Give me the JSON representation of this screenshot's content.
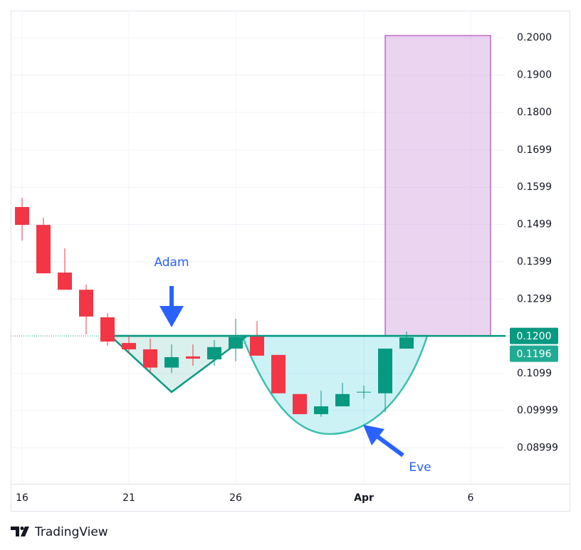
{
  "chart_data": {
    "type": "candlestick",
    "categories": [
      "16",
      null,
      null,
      null,
      null,
      "21",
      null,
      null,
      null,
      null,
      "26",
      null,
      null,
      null,
      null,
      null,
      "Apr",
      null,
      null,
      null,
      null,
      "6"
    ],
    "open": [
      0.1546,
      0.1498,
      0.137,
      0.1324,
      0.125,
      0.1181,
      0.1164,
      0.1115,
      0.1145,
      0.1137,
      0.1166,
      0.1198,
      0.1149,
      0.1044,
      0.099,
      0.1011,
      0.105,
      0.1046,
      0.1166,
      null,
      null,
      null
    ],
    "high": [
      0.1571,
      0.1517,
      0.1435,
      0.1338,
      0.1261,
      0.12,
      0.1193,
      0.1177,
      0.1177,
      0.1189,
      0.1246,
      0.124,
      0.1149,
      0.1044,
      0.1053,
      0.1074,
      0.1067,
      0.1166,
      0.1212,
      null,
      null,
      null
    ],
    "low": [
      0.1456,
      0.1368,
      0.1324,
      0.1204,
      0.1174,
      0.1153,
      0.1101,
      0.1101,
      0.112,
      0.112,
      0.1132,
      0.1147,
      0.1046,
      0.099,
      0.0983,
      0.1011,
      0.1032,
      0.0995,
      0.1166,
      null,
      null,
      null
    ],
    "close": [
      0.1498,
      0.1368,
      0.1324,
      0.1252,
      0.1185,
      0.1164,
      0.1115,
      0.1143,
      0.1139,
      0.117,
      0.1197,
      0.1147,
      0.1046,
      0.099,
      0.1011,
      0.1044,
      0.105,
      0.1166,
      0.1196,
      null,
      null,
      null
    ],
    "up_color": "#089981",
    "down_color": "#f23645",
    "ylim": [
      0.0803,
      0.2073
    ],
    "yticks": [
      {
        "value": 0.2,
        "label": "0.2000"
      },
      {
        "value": 0.19,
        "label": "0.1900"
      },
      {
        "value": 0.18,
        "label": "0.1800"
      },
      0.1699,
      0.1599,
      0.1499,
      0.1399,
      0.1299,
      0.1099,
      0.09999,
      0.08999
    ],
    "price_labels": [
      {
        "value": 0.12,
        "label": "0.1200",
        "color": "#089981"
      },
      {
        "value": 0.1196,
        "label": "0.1196",
        "color": "#22ab94"
      }
    ],
    "annotations": [
      "Adam",
      "Eve"
    ],
    "grid": true
  },
  "branding": "TradingView"
}
